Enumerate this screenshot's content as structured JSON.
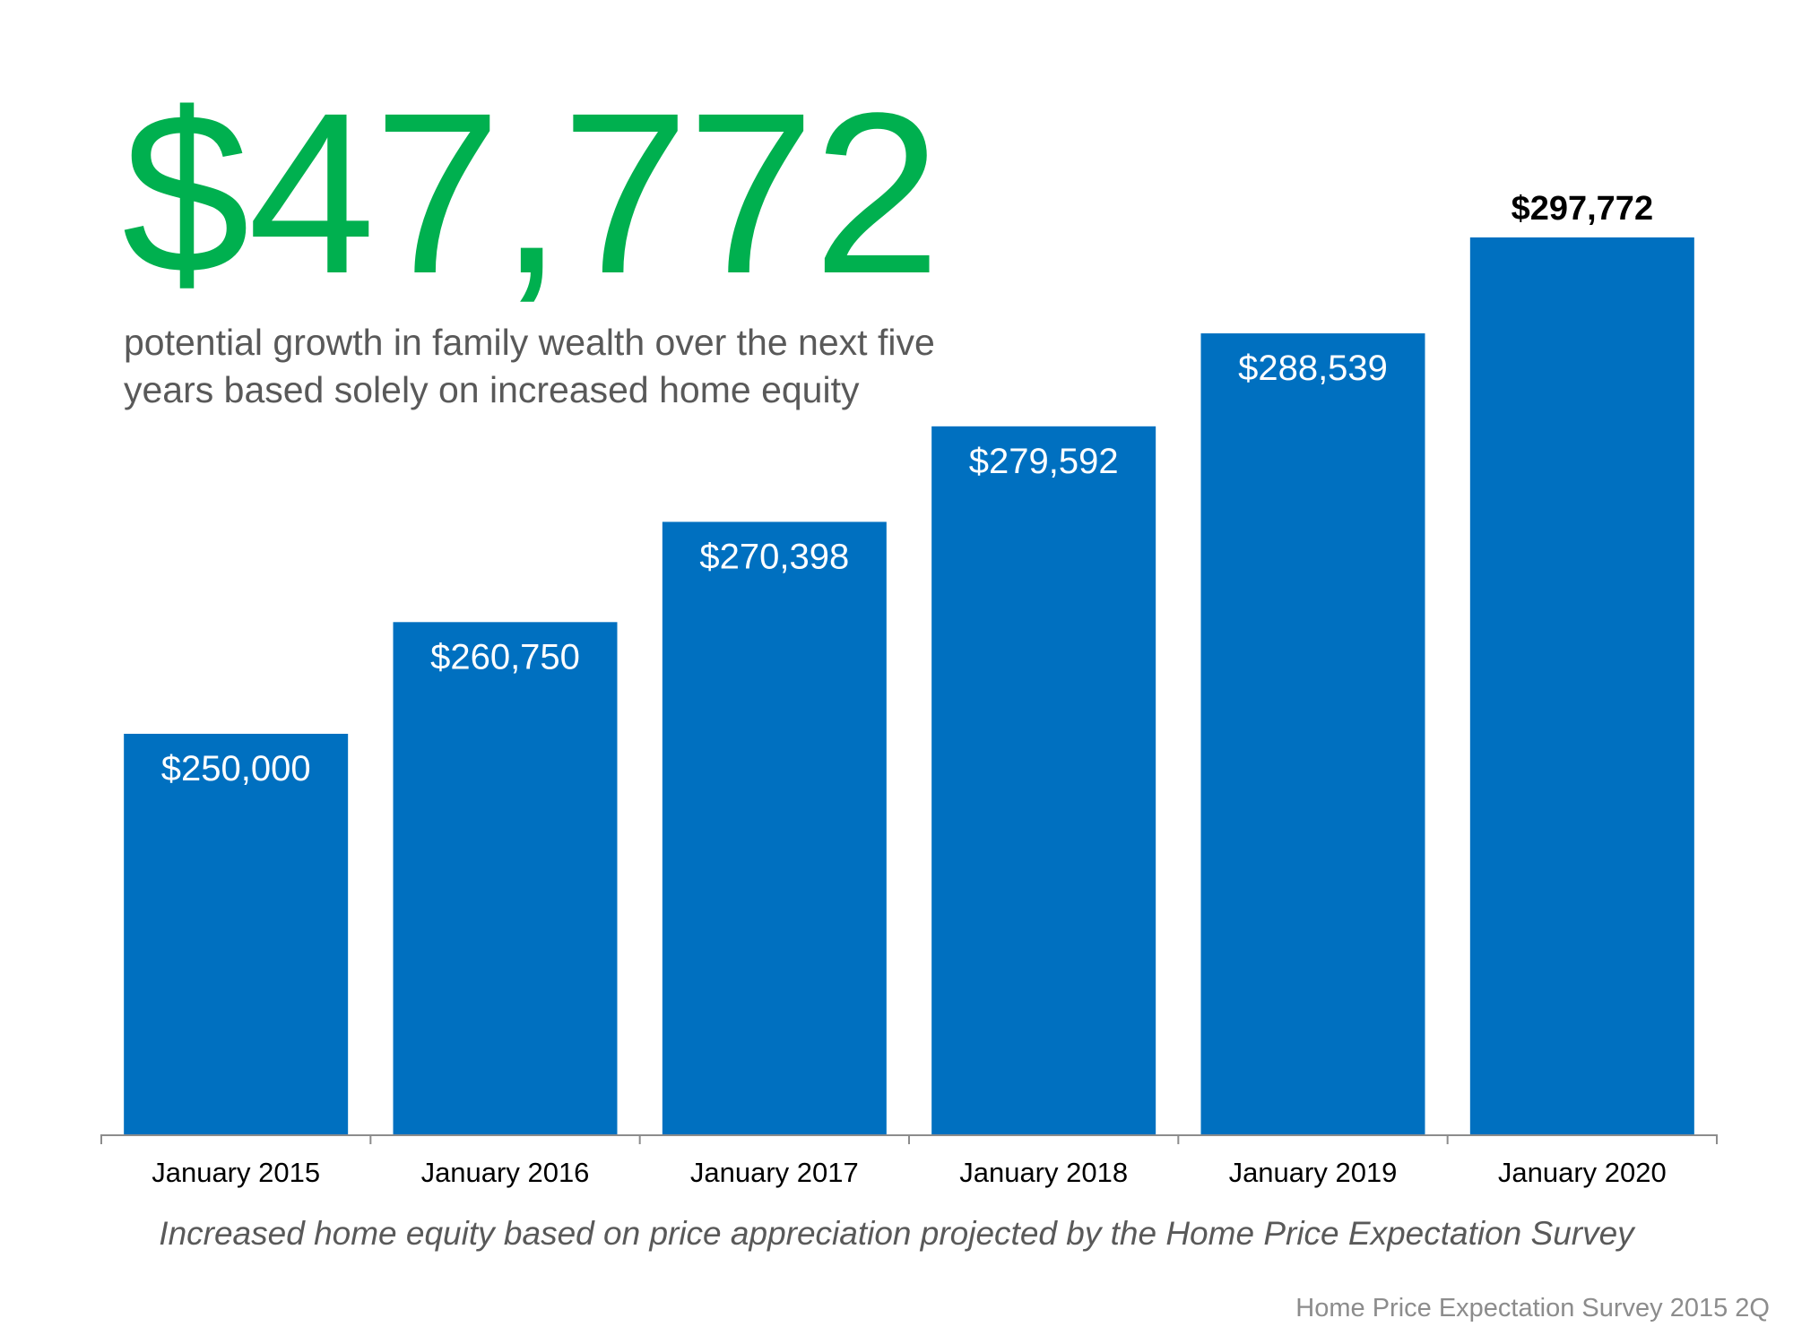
{
  "headline": {
    "value": "$47,772",
    "description_lines": [
      "potential growth in family wealth over the next five",
      "years based solely on increased home equity"
    ]
  },
  "caption": "Increased home equity based on price appreciation projected by the Home Price Expectation Survey",
  "source": "Home Price Expectation Survey 2015 2Q",
  "colors": {
    "bar": "#0070c0",
    "headline": "#00b04f",
    "axis": "#8c8c8c"
  },
  "chart_data": {
    "type": "bar",
    "title": "",
    "xlabel": "",
    "ylabel": "",
    "categories": [
      "January 2015",
      "January 2016",
      "January 2017",
      "January 2018",
      "January 2019",
      "January 2020"
    ],
    "values": [
      250000,
      260750,
      270398,
      279592,
      288539,
      297772
    ],
    "data_labels": [
      "$250,000",
      "$260,750",
      "$270,398",
      "$279,592",
      "$288,539",
      "$297,772"
    ],
    "highlight_last_label": true,
    "ylim": [
      211450,
      297772
    ],
    "grid": false,
    "legend": "none"
  }
}
